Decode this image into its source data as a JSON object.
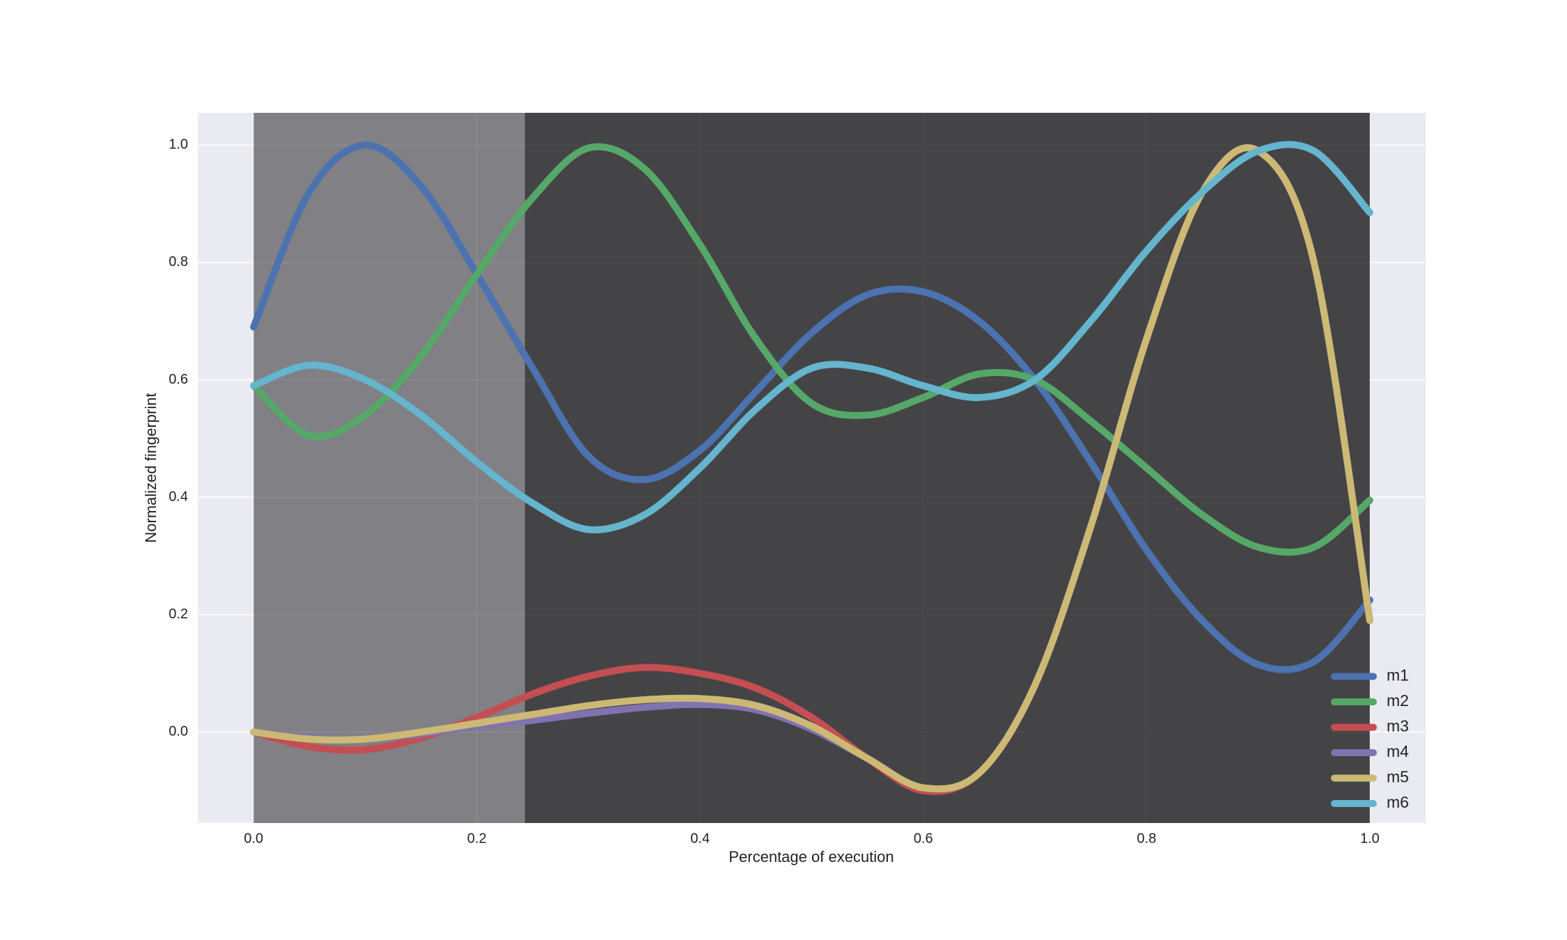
{
  "chart_data": {
    "type": "line",
    "xlabel": "Percentage of execution",
    "ylabel": "Normalized fingerprint",
    "x": [
      0,
      0.05,
      0.1,
      0.15,
      0.2,
      0.25,
      0.3,
      0.35,
      0.4,
      0.45,
      0.5,
      0.55,
      0.6,
      0.65,
      0.7,
      0.75,
      0.8,
      0.85,
      0.9,
      0.95,
      1.0
    ],
    "series": [
      {
        "name": "m1",
        "color": "#4c72b0",
        "values": [
          0.69,
          0.92,
          1.0,
          0.93,
          0.78,
          0.62,
          0.47,
          0.43,
          0.48,
          0.58,
          0.68,
          0.745,
          0.75,
          0.7,
          0.6,
          0.46,
          0.31,
          0.19,
          0.115,
          0.12,
          0.225
        ]
      },
      {
        "name": "m2",
        "color": "#55a868",
        "values": [
          0.59,
          0.505,
          0.54,
          0.64,
          0.78,
          0.91,
          0.995,
          0.96,
          0.83,
          0.67,
          0.56,
          0.54,
          0.57,
          0.61,
          0.6,
          0.53,
          0.45,
          0.37,
          0.315,
          0.315,
          0.395
        ]
      },
      {
        "name": "m3",
        "color": "#c44e52",
        "values": [
          0,
          -0.025,
          -0.03,
          -0.01,
          0.025,
          0.065,
          0.095,
          0.11,
          0.1,
          0.075,
          0.025,
          -0.045,
          -0.1,
          -0.07,
          0.08,
          0.35,
          0.67,
          0.92,
          0.99,
          0.8,
          0.19
        ]
      },
      {
        "name": "m4",
        "color": "#8172b2",
        "values": [
          0,
          -0.01,
          -0.012,
          -0.003,
          0.01,
          0.02,
          0.032,
          0.042,
          0.047,
          0.038,
          0.005,
          -0.045,
          -0.095,
          -0.07,
          0.08,
          0.35,
          0.67,
          0.92,
          0.99,
          0.8,
          0.19
        ]
      },
      {
        "name": "m5",
        "color": "#ccb974",
        "values": [
          0,
          -0.012,
          -0.012,
          0.0,
          0.015,
          0.03,
          0.045,
          0.055,
          0.057,
          0.045,
          0.01,
          -0.045,
          -0.095,
          -0.07,
          0.08,
          0.35,
          0.67,
          0.92,
          0.99,
          0.8,
          0.19
        ]
      },
      {
        "name": "m6",
        "color": "#64b5cd",
        "values": [
          0.59,
          0.625,
          0.6,
          0.54,
          0.46,
          0.39,
          0.345,
          0.37,
          0.45,
          0.55,
          0.62,
          0.62,
          0.59,
          0.57,
          0.6,
          0.7,
          0.82,
          0.92,
          0.99,
          0.99,
          0.885
        ]
      }
    ],
    "spans": [
      {
        "start": 0,
        "end": 0.243,
        "color": "#000000",
        "alpha": 0.45
      },
      {
        "start": 0.243,
        "end": 1.0,
        "color": "#000000",
        "alpha": 0.71
      }
    ],
    "xlim": [
      -0.05,
      1.05
    ],
    "ylim": [
      -0.155,
      1.055
    ],
    "xticks": [
      {
        "value": 0,
        "label": "0.0"
      },
      0.2,
      0.4,
      0.6,
      0.8,
      {
        "value": 1.0,
        "label": "1.0"
      }
    ],
    "yticks": [
      {
        "value": 0,
        "label": "0.0"
      },
      0.2,
      0.4,
      0.6,
      0.8,
      {
        "value": 1.0,
        "label": "1.0"
      }
    ],
    "grid": true,
    "legend": "lower right"
  }
}
